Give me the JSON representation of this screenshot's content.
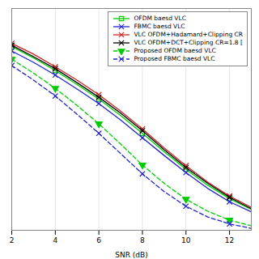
{
  "chart_data": {
    "type": "line",
    "xlabel": "SNR (dB)",
    "x": [
      2,
      3,
      4,
      5,
      6,
      7,
      8,
      9,
      10,
      11,
      12,
      13
    ],
    "series": [
      {
        "name": "OFDM baesd VLC",
        "color": "#00cc00",
        "line_style": "solid",
        "marker": "square",
        "values": [
          0.29,
          0.272,
          0.252,
          0.23,
          0.207,
          0.181,
          0.153,
          0.124,
          0.096,
          0.071,
          0.05,
          0.033
        ]
      },
      {
        "name": "FBMC baesd VLC",
        "color": "#2222cc",
        "line_style": "solid",
        "marker": "x",
        "values": [
          0.283,
          0.265,
          0.245,
          0.223,
          0.2,
          0.174,
          0.146,
          0.118,
          0.091,
          0.066,
          0.045,
          0.029
        ]
      },
      {
        "name": "VLC OFDM+Hadamard+Clipping CR",
        "color": "#cc2222",
        "line_style": "solid",
        "marker": "x",
        "values": [
          0.295,
          0.278,
          0.258,
          0.237,
          0.214,
          0.188,
          0.16,
          0.13,
          0.102,
          0.076,
          0.054,
          0.036
        ]
      },
      {
        "name": "VLC OFDM+DCT+Clipping CR=1.8 [",
        "color": "#000000",
        "line_style": "solid",
        "marker": "x",
        "values": [
          0.292,
          0.274,
          0.255,
          0.233,
          0.21,
          0.185,
          0.157,
          0.127,
          0.099,
          0.074,
          0.052,
          0.034
        ]
      },
      {
        "name": "Proposed OFDM baesd VLC",
        "color": "#00cc00",
        "line_style": "dashed",
        "marker": "triangle-down",
        "values": [
          0.27,
          0.248,
          0.224,
          0.197,
          0.168,
          0.136,
          0.103,
          0.074,
          0.049,
          0.03,
          0.016,
          0.007
        ]
      },
      {
        "name": "Proposed FBMC baesd VLC",
        "color": "#2222cc",
        "line_style": "dashed",
        "marker": "x",
        "values": [
          0.26,
          0.237,
          0.212,
          0.183,
          0.153,
          0.121,
          0.089,
          0.061,
          0.038,
          0.021,
          0.01,
          0.003
        ]
      }
    ],
    "xlim": [
      2,
      13
    ],
    "xticks": [
      2,
      4,
      6,
      8,
      10,
      12
    ],
    "ylim": [
      0.0,
      0.35
    ],
    "yticks": [],
    "tick_labels": "x",
    "grid": true,
    "legend": "upper right"
  }
}
